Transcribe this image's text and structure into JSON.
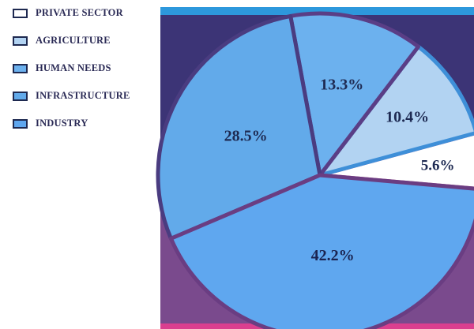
{
  "chart_data": {
    "type": "pie",
    "title": "",
    "legend_position": "left",
    "labels": [
      "PRIVATE SECTOR",
      "AGRICULTURE",
      "HUMAN NEEDS",
      "INFRASTRUCTURE",
      "INDUSTRY"
    ],
    "values": [
      5.6,
      10.4,
      13.3,
      28.5,
      42.2
    ],
    "value_labels": [
      "5.6%",
      "10.4%",
      "13.3%",
      "28.5%",
      "42.2%"
    ],
    "colors": [
      "#ffffff",
      "#b2d3f2",
      "#6cb1ee",
      "#62aaea",
      "#5fa7ef"
    ],
    "label_colors": [
      "#1e2a52",
      "#1e2a52",
      "#1e2a52",
      "#1e2a52",
      "#1a2350"
    ],
    "background_colors": {
      "upper": "#3c3476",
      "lower": "#7a4a8d",
      "rim": "#db3f8f",
      "border": "#2d98dc"
    }
  }
}
